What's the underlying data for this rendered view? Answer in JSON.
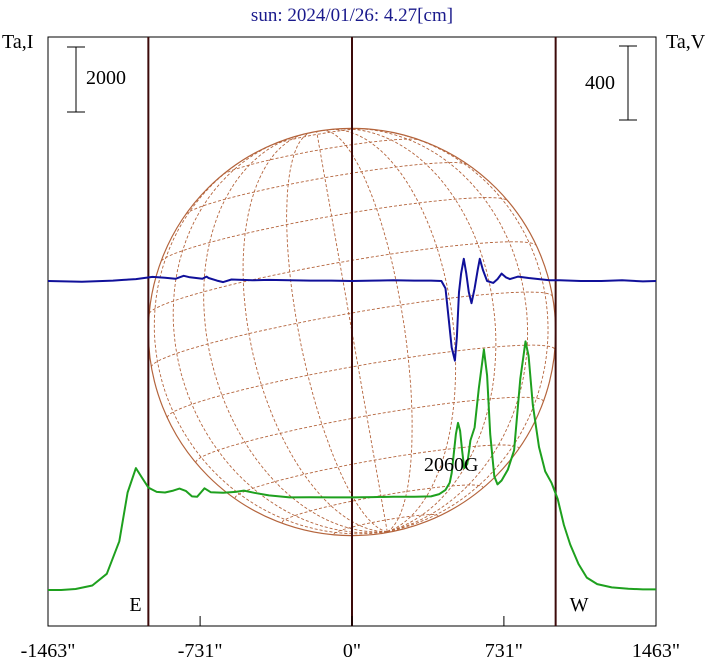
{
  "chart_data": {
    "type": "line",
    "title": "sun: 2024/01/26: 4.27[cm]",
    "left_axis_label": "Ta,I",
    "right_axis_label": "Ta,V",
    "left_scale_bar": "2000",
    "right_scale_bar": "400",
    "x_ticks": [
      "-1463\"",
      "-731\"",
      "0\"",
      "731\"",
      "1463\""
    ],
    "x_tick_values": [
      -1463,
      -731,
      0,
      731,
      1463
    ],
    "xlim": [
      -1463,
      1463
    ],
    "limb_markers": [
      {
        "label": "E",
        "x": -980
      },
      {
        "label": "W",
        "x": 980
      }
    ],
    "annotation": "2060G",
    "colors": {
      "stokes_i": "#1ea01e",
      "stokes_v": "#10109a",
      "disk": "#b4643c",
      "limb_lines": "#3c0a0a",
      "title": "#1a1a8c"
    },
    "series": [
      {
        "key": "I",
        "axis": "Ta,I",
        "points": [
          [
            -1463,
            0
          ],
          [
            -1400,
            0
          ],
          [
            -1330,
            30
          ],
          [
            -1250,
            140
          ],
          [
            -1180,
            500
          ],
          [
            -1120,
            1500
          ],
          [
            -1080,
            3000
          ],
          [
            -1040,
            3750
          ],
          [
            -1010,
            3450
          ],
          [
            -980,
            3150
          ],
          [
            -940,
            3020
          ],
          [
            -900,
            3000
          ],
          [
            -860,
            3060
          ],
          [
            -830,
            3120
          ],
          [
            -800,
            3050
          ],
          [
            -770,
            2880
          ],
          [
            -745,
            2870
          ],
          [
            -725,
            3020
          ],
          [
            -710,
            3130
          ],
          [
            -680,
            3010
          ],
          [
            -620,
            2990
          ],
          [
            -560,
            3020
          ],
          [
            -520,
            3060
          ],
          [
            -470,
            2990
          ],
          [
            -400,
            2910
          ],
          [
            -300,
            2850
          ],
          [
            -200,
            2855
          ],
          [
            -100,
            2850
          ],
          [
            0,
            2850
          ],
          [
            100,
            2860
          ],
          [
            200,
            2870
          ],
          [
            300,
            2870
          ],
          [
            380,
            2880
          ],
          [
            420,
            2950
          ],
          [
            450,
            3080
          ],
          [
            470,
            3300
          ],
          [
            480,
            3600
          ],
          [
            490,
            4200
          ],
          [
            500,
            4800
          ],
          [
            510,
            5140
          ],
          [
            520,
            4900
          ],
          [
            530,
            4300
          ],
          [
            540,
            3750
          ],
          [
            555,
            3880
          ],
          [
            570,
            4600
          ],
          [
            590,
            5000
          ],
          [
            610,
            6200
          ],
          [
            635,
            7400
          ],
          [
            650,
            6600
          ],
          [
            665,
            4800
          ],
          [
            685,
            3500
          ],
          [
            700,
            3250
          ],
          [
            720,
            3370
          ],
          [
            750,
            3700
          ],
          [
            780,
            4300
          ],
          [
            810,
            6500
          ],
          [
            835,
            7650
          ],
          [
            850,
            7200
          ],
          [
            870,
            5700
          ],
          [
            900,
            4400
          ],
          [
            930,
            3650
          ],
          [
            960,
            3300
          ],
          [
            990,
            2800
          ],
          [
            1020,
            2000
          ],
          [
            1050,
            1400
          ],
          [
            1090,
            800
          ],
          [
            1130,
            380
          ],
          [
            1180,
            180
          ],
          [
            1250,
            80
          ],
          [
            1330,
            40
          ],
          [
            1400,
            20
          ],
          [
            1463,
            20
          ]
        ]
      },
      {
        "key": "V",
        "axis": "Ta,V",
        "points": [
          [
            -1463,
            0
          ],
          [
            -1300,
            -4
          ],
          [
            -1200,
            0
          ],
          [
            -1150,
            2
          ],
          [
            -1100,
            6
          ],
          [
            -1040,
            10
          ],
          [
            -1000,
            16
          ],
          [
            -960,
            22
          ],
          [
            -900,
            18
          ],
          [
            -850,
            12
          ],
          [
            -810,
            28
          ],
          [
            -780,
            20
          ],
          [
            -720,
            12
          ],
          [
            -700,
            24
          ],
          [
            -690,
            16
          ],
          [
            -650,
            2
          ],
          [
            -620,
            -6
          ],
          [
            -580,
            8
          ],
          [
            -530,
            6
          ],
          [
            -480,
            4
          ],
          [
            -400,
            6
          ],
          [
            -300,
            4
          ],
          [
            -200,
            2
          ],
          [
            -100,
            2
          ],
          [
            0,
            0
          ],
          [
            100,
            2
          ],
          [
            200,
            4
          ],
          [
            300,
            2
          ],
          [
            380,
            2
          ],
          [
            430,
            0
          ],
          [
            450,
            -40
          ],
          [
            465,
            -200
          ],
          [
            480,
            -360
          ],
          [
            495,
            -430
          ],
          [
            505,
            -300
          ],
          [
            515,
            -60
          ],
          [
            525,
            40
          ],
          [
            538,
            120
          ],
          [
            550,
            40
          ],
          [
            562,
            -60
          ],
          [
            575,
            -120
          ],
          [
            590,
            -40
          ],
          [
            605,
            60
          ],
          [
            615,
            120
          ],
          [
            630,
            60
          ],
          [
            650,
            0
          ],
          [
            680,
            -10
          ],
          [
            700,
            10
          ],
          [
            720,
            40
          ],
          [
            740,
            20
          ],
          [
            760,
            10
          ],
          [
            800,
            24
          ],
          [
            850,
            16
          ],
          [
            900,
            10
          ],
          [
            950,
            4
          ],
          [
            1000,
            4
          ],
          [
            1100,
            0
          ],
          [
            1200,
            0
          ],
          [
            1300,
            4
          ],
          [
            1400,
            -2
          ],
          [
            1463,
            0
          ]
        ]
      }
    ]
  }
}
